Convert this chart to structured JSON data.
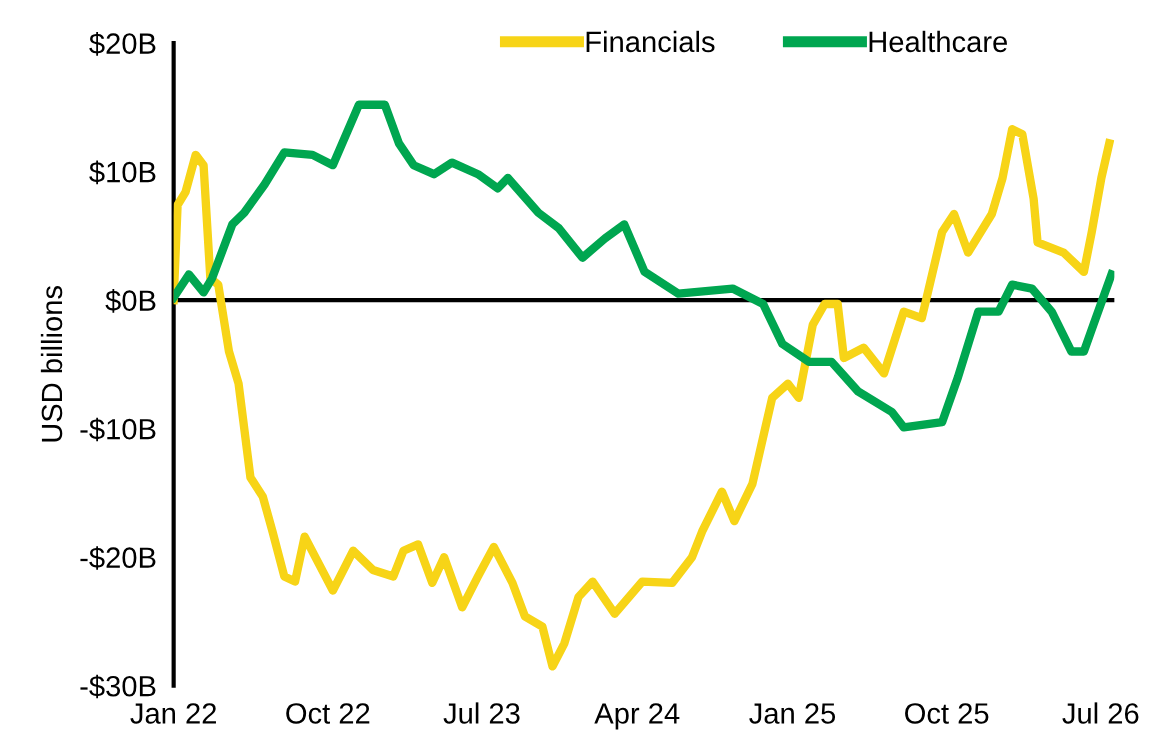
{
  "chart_data": {
    "type": "line",
    "ylabel": "USD billions",
    "legend": "top right",
    "grid": false,
    "line_style": "solid",
    "marker": "none",
    "xlim": [
      "2022-01-01",
      "2026-07-25"
    ],
    "xticks": [
      {
        "value": "2022-01-01",
        "label": "Jan 22"
      },
      {
        "value": "2022-10-01",
        "label": "Oct 22"
      },
      {
        "value": "2023-07-01",
        "label": "Jul 23"
      },
      {
        "value": "2024-04-01",
        "label": "Apr 24"
      },
      {
        "value": "2025-01-01",
        "label": "Jan 25"
      },
      {
        "value": "2025-10-01",
        "label": "Oct 25"
      },
      {
        "value": "2026-07-01",
        "label": "Jul 26"
      }
    ],
    "ylim": [
      -30,
      20
    ],
    "yticks": [
      {
        "value": 20,
        "label": "$20B"
      },
      {
        "value": 10,
        "label": "$10B"
      },
      {
        "value": 0,
        "label": "$0B"
      },
      {
        "value": -10,
        "label": "-$10B"
      },
      {
        "value": -20,
        "label": "-$20B"
      },
      {
        "value": -30,
        "label": "-$30B"
      }
    ],
    "ref_lines": [
      {
        "axis": "y",
        "value": 0,
        "color": "#000000",
        "line_style": "solid"
      }
    ],
    "series": [
      {
        "name": "Financials",
        "color": "#f7d417",
        "x": [
          "2022-01-01",
          "2022-01-08",
          "2022-01-22",
          "2022-02-09",
          "2022-02-23",
          "2022-03-07",
          "2022-03-21",
          "2022-04-09",
          "2022-04-26",
          "2022-05-17",
          "2022-06-08",
          "2022-06-25",
          "2022-07-16",
          "2022-08-04",
          "2022-08-21",
          "2022-09-15",
          "2022-10-10",
          "2022-11-15",
          "2022-12-20",
          "2023-01-25",
          "2023-02-12",
          "2023-03-10",
          "2023-04-04",
          "2023-04-25",
          "2023-05-27",
          "2023-06-24",
          "2023-07-22",
          "2023-08-24",
          "2023-09-15",
          "2023-10-16",
          "2023-11-03",
          "2023-11-24",
          "2023-12-19",
          "2024-01-13",
          "2024-02-21",
          "2024-04-10",
          "2024-06-02",
          "2024-07-07",
          "2024-07-25",
          "2024-08-29",
          "2024-09-20",
          "2024-10-22",
          "2024-11-02",
          "2024-11-26",
          "2024-12-24",
          "2025-01-12",
          "2025-02-06",
          "2025-02-27",
          "2025-03-22",
          "2025-04-02",
          "2025-05-07",
          "2025-06-12",
          "2025-07-17",
          "2025-08-18",
          "2025-09-23",
          "2025-10-14",
          "2025-11-08",
          "2025-12-20",
          "2026-01-08",
          "2026-01-25",
          "2026-02-12",
          "2026-03-04",
          "2026-03-11",
          "2026-04-26",
          "2026-06-01",
          "2026-06-15",
          "2026-07-02",
          "2026-07-16"
        ],
        "values": [
          0,
          7.4,
          8.4,
          11.3,
          10.5,
          1.7,
          1.2,
          -4,
          -6.5,
          -13.8,
          -15.3,
          -18,
          -21.5,
          -21.9,
          -18.4,
          -20.5,
          -22.6,
          -19.5,
          -21,
          -21.5,
          -19.5,
          -19,
          -22,
          -20,
          -23.9,
          -21.5,
          -19.2,
          -22,
          -24.6,
          -25.4,
          -28.5,
          -26.7,
          -23.1,
          -21.9,
          -24.4,
          -21.9,
          -22,
          -20,
          -18,
          -14.9,
          -17.2,
          -14.3,
          -12.2,
          -7.6,
          -6.5,
          -7.6,
          -1.9,
          -0.3,
          -0.3,
          -4.5,
          -3.7,
          -5.7,
          -0.9,
          -1.4,
          5.3,
          6.7,
          3.7,
          6.7,
          9.5,
          13.3,
          12.9,
          7.9,
          4.5,
          3.7,
          2.2,
          5.3,
          9.5,
          12.2
        ]
      },
      {
        "name": "Healthcare",
        "color": "#00a650",
        "x": [
          "2022-01-01",
          "2022-01-28",
          "2022-02-23",
          "2022-03-10",
          "2022-04-15",
          "2022-05-06",
          "2022-06-11",
          "2022-07-16",
          "2022-09-04",
          "2022-10-10",
          "2022-11-25",
          "2023-01-10",
          "2023-02-04",
          "2023-03-02",
          "2023-04-07",
          "2023-05-09",
          "2023-06-24",
          "2023-07-29",
          "2023-08-16",
          "2023-10-09",
          "2023-11-14",
          "2023-12-26",
          "2024-02-04",
          "2024-03-09",
          "2024-04-14",
          "2024-06-13",
          "2024-09-17",
          "2024-11-10",
          "2024-12-14",
          "2025-01-30",
          "2025-03-11",
          "2025-04-27",
          "2025-06-26",
          "2025-07-17",
          "2025-09-23",
          "2025-10-21",
          "2025-11-26",
          "2026-01-01",
          "2026-01-25",
          "2026-03-01",
          "2026-04-05",
          "2026-05-10",
          "2026-06-01",
          "2026-06-18",
          "2026-07-20"
        ],
        "values": [
          0.2,
          2,
          0.6,
          1.7,
          5.9,
          6.8,
          9,
          11.5,
          11.3,
          10.5,
          15.2,
          15.2,
          12.2,
          10.5,
          9.8,
          10.7,
          9.8,
          8.7,
          9.5,
          6.8,
          5.6,
          3.3,
          4.8,
          5.9,
          2.2,
          0.5,
          0.9,
          -0.3,
          -3.4,
          -4.8,
          -4.8,
          -7.1,
          -8.7,
          -9.9,
          -9.5,
          -6,
          -0.9,
          -0.9,
          1.2,
          0.9,
          -0.9,
          -4,
          -4,
          -1.9,
          2
        ]
      }
    ]
  }
}
